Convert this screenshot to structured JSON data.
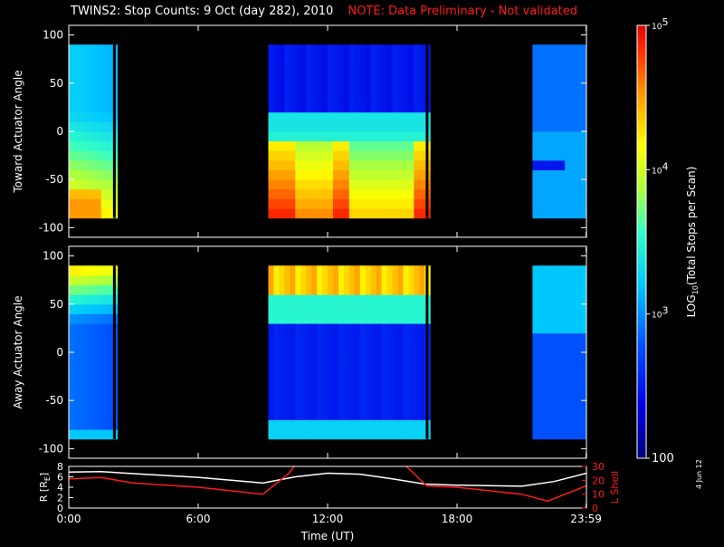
{
  "header": {
    "title": "TWINS2: Stop Counts:  9 Oct (day 282), 2010",
    "note": "NOTE: Data Preliminary - Not validated"
  },
  "side_label": "4 Jun 12",
  "colors": {
    "background": "#000000",
    "axes": "#ffffff",
    "note": "#ff1a1a",
    "r_line": "#ffffff",
    "lshell_line": "#ff1a1a"
  },
  "chart_data": [
    {
      "type": "heatmap",
      "name": "toward",
      "ylabel": "Toward Actuator Angle",
      "ylim": [
        -110,
        110
      ],
      "yticks": [
        -100,
        -50,
        0,
        50,
        100
      ],
      "ytick_labels": [
        "-100",
        "-50",
        "0",
        "50",
        "100"
      ],
      "xlim_hours": [
        0,
        24
      ],
      "data_y_range": [
        -90,
        90
      ],
      "coverage_hours": [
        [
          0.0,
          2.25
        ],
        [
          9.25,
          16.75
        ],
        [
          21.5,
          24.0
        ]
      ],
      "gap_lines_hours": [
        2.05,
        16.55
      ]
    },
    {
      "type": "heatmap",
      "name": "away",
      "ylabel": "Away Actuator Angle",
      "ylim": [
        -110,
        110
      ],
      "yticks": [
        -100,
        -50,
        0,
        50,
        100
      ],
      "ytick_labels": [
        "-100",
        "-50",
        "0",
        "50",
        "100"
      ],
      "xlim_hours": [
        0,
        24
      ],
      "data_y_range": [
        -90,
        90
      ],
      "coverage_hours": [
        [
          0.0,
          2.25
        ],
        [
          9.25,
          16.75
        ],
        [
          21.5,
          24.0
        ]
      ],
      "gap_lines_hours": [
        2.05,
        16.55
      ]
    },
    {
      "type": "line",
      "name": "orbit",
      "xlabel": "Time (UT)",
      "xticks_hours": [
        0,
        6,
        12,
        18,
        23.983
      ],
      "xtick_labels": [
        "0:00",
        "6:00",
        "12:00",
        "18:00",
        "23:59"
      ],
      "left_axis": {
        "label": "R [R",
        "label_sub": "E",
        "label_end": "]",
        "ylim": [
          0,
          8
        ],
        "yticks": [
          0,
          2,
          4,
          6,
          8
        ],
        "ytick_labels": [
          "0",
          "2",
          "4",
          "6",
          "8"
        ]
      },
      "right_axis": {
        "label": "L Shell",
        "ylim": [
          0,
          30
        ],
        "yticks": [
          0,
          10,
          20,
          30
        ],
        "ytick_labels": [
          "0",
          "10",
          "20",
          "30"
        ]
      },
      "series": [
        {
          "axis": "left",
          "color": "#ffffff",
          "x": [
            0,
            1.5,
            3,
            6,
            9,
            10.5,
            12,
            13.5,
            15,
            16.5,
            18,
            21,
            22.5,
            24
          ],
          "y": [
            6.9,
            7.0,
            6.6,
            5.9,
            4.8,
            6.0,
            6.7,
            6.5,
            5.6,
            4.6,
            4.4,
            4.2,
            5.1,
            6.7
          ]
        },
        {
          "axis": "right",
          "color": "#ff1a1a",
          "segments": [
            {
              "x": [
                0,
                1.5,
                3,
                6,
                9,
                10.2,
                10.45
              ],
              "y": [
                21,
                22,
                18,
                15,
                10,
                25,
                30
              ]
            },
            {
              "x": [
                15.65,
                16.6,
                18,
                21,
                22.2,
                24
              ],
              "y": [
                30,
                16,
                15,
                10,
                5,
                16
              ]
            }
          ]
        }
      ]
    },
    {
      "type": "colorbar",
      "label": "LOG",
      "label_sub": "10",
      "label_rest": "(Total Stops per Scan)",
      "scale": "log",
      "range": [
        100,
        100000
      ],
      "tick_marks": [
        {
          "base": "10",
          "exp": "5",
          "value": 100000
        },
        {
          "base": "10",
          "exp": "4",
          "value": 10000
        },
        {
          "base": "10",
          "exp": "3",
          "value": 1000
        },
        {
          "text": "100",
          "value": 100
        }
      ]
    }
  ]
}
